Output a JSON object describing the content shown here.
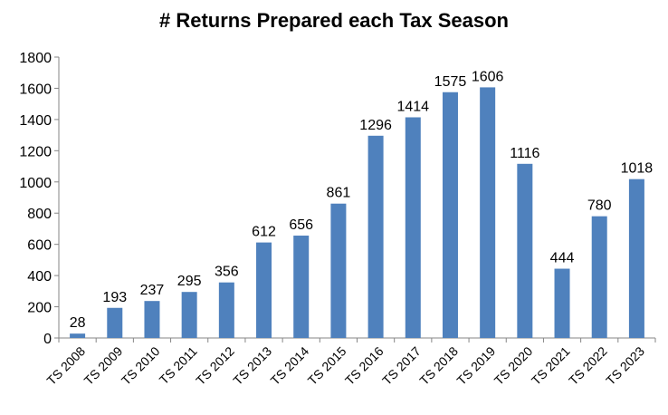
{
  "chart_data": {
    "type": "bar",
    "title": "# Returns Prepared each Tax Season",
    "categories": [
      "TS 2008",
      "TS 2009",
      "TS 2010",
      "TS 2011",
      "TS 2012",
      "TS 2013",
      "TS 2014",
      "TS 2015",
      "TS 2016",
      "TS 2017",
      "TS 2018",
      "TS 2019",
      "TS 2020",
      "TS 2021",
      "TS 2022",
      "TS 2023"
    ],
    "values": [
      28,
      193,
      237,
      295,
      356,
      612,
      656,
      861,
      1296,
      1414,
      1575,
      1606,
      1116,
      444,
      780,
      1018
    ],
    "ylim": [
      0,
      1800
    ],
    "yticks": [
      0,
      200,
      400,
      600,
      800,
      1000,
      1200,
      1400,
      1600,
      1800
    ],
    "grid": false,
    "legend": "none",
    "bar_color": "#4f81bd",
    "axis_color": "#868686"
  }
}
